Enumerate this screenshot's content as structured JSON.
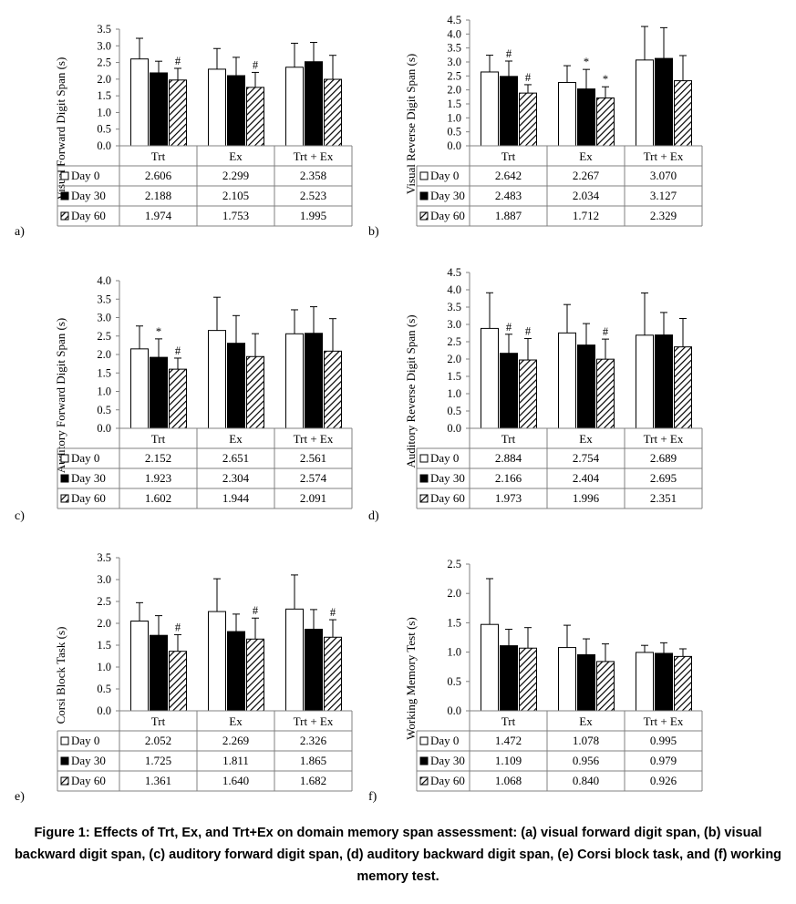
{
  "caption": "Figure 1: Effects of Trt, Ex, and Trt+Ex on domain memory span assessment: (a) visual forward digit span, (b) visual backward digit span, (c) auditory forward digit span, (d) auditory backward digit span, (e) Corsi block task, and (f) working memory test.",
  "colors": {
    "day0": "#ffffff",
    "day30": "#000000",
    "day60_hatch": "#000000",
    "axis": "#808080"
  },
  "chart_data": [
    {
      "panel": "a)",
      "type": "bar",
      "ylabel": "Visual Forward Digit Span (s)",
      "ylim": [
        0,
        3.5
      ],
      "yticks": [
        "0.0",
        "0.5",
        "1.0",
        "1.5",
        "2.0",
        "2.5",
        "3.0",
        "3.5"
      ],
      "categories": [
        "Trt",
        "Ex",
        "Trt + Ex"
      ],
      "series": [
        {
          "name": "Day 0",
          "values": [
            2.606,
            2.299,
            2.358
          ],
          "labels": [
            "2.606",
            "2.299",
            "2.358"
          ],
          "err": [
            0.62,
            0.62,
            0.72
          ],
          "marks": [
            "",
            "",
            ""
          ]
        },
        {
          "name": "Day 30",
          "values": [
            2.188,
            2.105,
            2.523
          ],
          "labels": [
            "2.188",
            "2.105",
            "2.523"
          ],
          "err": [
            0.35,
            0.55,
            0.58
          ],
          "marks": [
            "",
            "",
            ""
          ]
        },
        {
          "name": "Day 60",
          "values": [
            1.974,
            1.753,
            1.995
          ],
          "labels": [
            "1.974",
            "1.753",
            "1.995"
          ],
          "err": [
            0.35,
            0.45,
            0.72
          ],
          "marks": [
            "#",
            "#",
            ""
          ]
        }
      ]
    },
    {
      "panel": "b)",
      "type": "bar",
      "ylabel": "Visual Reverse Digit Span (s)",
      "ylim": [
        0,
        4.5
      ],
      "yticks": [
        "0.0",
        "0.5",
        "1.0",
        "1.5",
        "2.0",
        "2.5",
        "3.0",
        "3.5",
        "4.0",
        "4.5"
      ],
      "categories": [
        "Trt",
        "Ex",
        "Trt + Ex"
      ],
      "series": [
        {
          "name": "Day 0",
          "values": [
            2.642,
            2.267,
            3.07
          ],
          "labels": [
            "2.642",
            "2.267",
            "3.070"
          ],
          "err": [
            0.6,
            0.6,
            1.2
          ],
          "marks": [
            "",
            "",
            ""
          ]
        },
        {
          "name": "Day 30",
          "values": [
            2.483,
            2.034,
            3.127
          ],
          "labels": [
            "2.483",
            "2.034",
            "3.127"
          ],
          "err": [
            0.55,
            0.7,
            1.1
          ],
          "marks": [
            "#",
            "*",
            ""
          ]
        },
        {
          "name": "Day 60",
          "values": [
            1.887,
            1.712,
            2.329
          ],
          "labels": [
            "1.887",
            "1.712",
            "2.329"
          ],
          "err": [
            0.3,
            0.4,
            0.9
          ],
          "marks": [
            "#",
            "*",
            ""
          ]
        }
      ]
    },
    {
      "panel": "c)",
      "type": "bar",
      "ylabel": "Auditory Forward Digit Span (s)",
      "ylim": [
        0,
        4.0
      ],
      "yticks": [
        "0.0",
        "0.5",
        "1.0",
        "1.5",
        "2.0",
        "2.5",
        "3.0",
        "3.5",
        "4.0"
      ],
      "categories": [
        "Trt",
        "Ex",
        "Trt + Ex"
      ],
      "series": [
        {
          "name": "Day 0",
          "values": [
            2.152,
            2.651,
            2.561
          ],
          "labels": [
            "2.152",
            "2.651",
            "2.561"
          ],
          "err": [
            0.62,
            0.9,
            0.65
          ],
          "marks": [
            "",
            "",
            ""
          ]
        },
        {
          "name": "Day 30",
          "values": [
            1.923,
            2.304,
            2.574
          ],
          "labels": [
            "1.923",
            "2.304",
            "2.574"
          ],
          "err": [
            0.5,
            0.75,
            0.72
          ],
          "marks": [
            "*",
            "",
            ""
          ]
        },
        {
          "name": "Day 60",
          "values": [
            1.602,
            1.944,
            2.091
          ],
          "labels": [
            "1.602",
            "1.944",
            "2.091"
          ],
          "err": [
            0.3,
            0.62,
            0.88
          ],
          "marks": [
            "#",
            "",
            ""
          ]
        }
      ]
    },
    {
      "panel": "d)",
      "type": "bar",
      "ylabel": "Auditory Reverse Digit Span (s)",
      "ylim": [
        0,
        4.5
      ],
      "yticks": [
        "0.0",
        "0.5",
        "1.0",
        "1.5",
        "2.0",
        "2.5",
        "3.0",
        "3.5",
        "4.0",
        "4.5"
      ],
      "categories": [
        "Trt",
        "Ex",
        "Trt + Ex"
      ],
      "series": [
        {
          "name": "Day 0",
          "values": [
            2.884,
            2.754,
            2.689
          ],
          "labels": [
            "2.884",
            "2.754",
            "2.689"
          ],
          "err": [
            1.03,
            0.82,
            1.22
          ],
          "marks": [
            "",
            "",
            ""
          ]
        },
        {
          "name": "Day 30",
          "values": [
            2.166,
            2.404,
            2.695
          ],
          "labels": [
            "2.166",
            "2.404",
            "2.695"
          ],
          "err": [
            0.55,
            0.62,
            0.65
          ],
          "marks": [
            "#",
            "",
            ""
          ]
        },
        {
          "name": "Day 60",
          "values": [
            1.973,
            1.996,
            2.351
          ],
          "labels": [
            "1.973",
            "1.996",
            "2.351"
          ],
          "err": [
            0.62,
            0.58,
            0.82
          ],
          "marks": [
            "#",
            "#",
            ""
          ]
        }
      ]
    },
    {
      "panel": "e)",
      "type": "bar",
      "ylabel": "Corsi Block Task (s)",
      "ylim": [
        0,
        3.5
      ],
      "yticks": [
        "0.0",
        "0.5",
        "1.0",
        "1.5",
        "2.0",
        "2.5",
        "3.0",
        "3.5"
      ],
      "categories": [
        "Trt",
        "Ex",
        "Trt + Ex"
      ],
      "series": [
        {
          "name": "Day 0",
          "values": [
            2.052,
            2.269,
            2.326
          ],
          "labels": [
            "2.052",
            "2.269",
            "2.326"
          ],
          "err": [
            0.42,
            0.75,
            0.78
          ],
          "marks": [
            "",
            "",
            ""
          ]
        },
        {
          "name": "Day 30",
          "values": [
            1.725,
            1.811,
            1.865
          ],
          "labels": [
            "1.725",
            "1.811",
            "1.865"
          ],
          "err": [
            0.45,
            0.4,
            0.45
          ],
          "marks": [
            "",
            "",
            ""
          ]
        },
        {
          "name": "Day 60",
          "values": [
            1.361,
            1.64,
            1.682
          ],
          "labels": [
            "1.361",
            "1.640",
            "1.682"
          ],
          "err": [
            0.38,
            0.48,
            0.4
          ],
          "marks": [
            "#",
            "#",
            "#"
          ]
        }
      ]
    },
    {
      "panel": "f)",
      "type": "bar",
      "ylabel": "Working Memory Test (s)",
      "ylim": [
        0,
        2.5
      ],
      "yticks": [
        "0.0",
        "0.5",
        "1.0",
        "1.5",
        "2.0",
        "2.5"
      ],
      "categories": [
        "Trt",
        "Ex",
        "Trt + Ex"
      ],
      "series": [
        {
          "name": "Day 0",
          "values": [
            1.472,
            1.078,
            0.995
          ],
          "labels": [
            "1.472",
            "1.078",
            "0.995"
          ],
          "err": [
            0.78,
            0.38,
            0.12
          ],
          "marks": [
            "",
            "",
            ""
          ]
        },
        {
          "name": "Day 30",
          "values": [
            1.109,
            0.956,
            0.979
          ],
          "labels": [
            "1.109",
            "0.956",
            "0.979"
          ],
          "err": [
            0.28,
            0.27,
            0.18
          ],
          "marks": [
            "",
            "",
            ""
          ]
        },
        {
          "name": "Day 60",
          "values": [
            1.068,
            0.84,
            0.926
          ],
          "labels": [
            "1.068",
            "0.840",
            "0.926"
          ],
          "err": [
            0.35,
            0.3,
            0.13
          ],
          "marks": [
            "",
            "",
            ""
          ]
        }
      ]
    }
  ]
}
